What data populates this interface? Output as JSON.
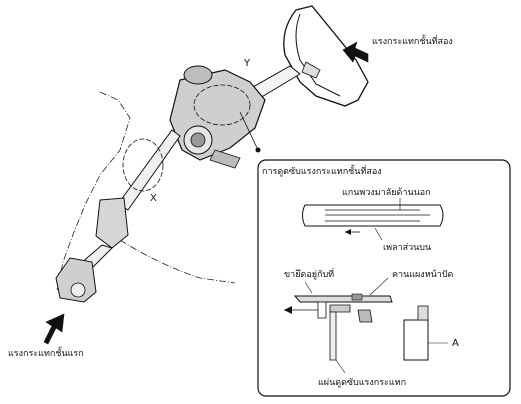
{
  "labels": {
    "secondary_impact": "แรงกระแทกชั้นที่สอง",
    "primary_impact": "แรงกระแทกชั้นแรก",
    "marker_y": "Y",
    "marker_x": "X",
    "marker_a": "A"
  },
  "detail_box": {
    "title": "การดูดซับแรงกระแทกชั้นที่สอง",
    "outer_shaft": "แกนพวงมาลัยด้านนอก",
    "upper_shaft": "เพลาส่วนบน",
    "mounting_bracket": "ขายึดอยู่กับที่",
    "dashboard_beam": "คานแผงหน้าปัด",
    "energy_plate": "แผ่นดูดซับแรงกระแทก"
  }
}
